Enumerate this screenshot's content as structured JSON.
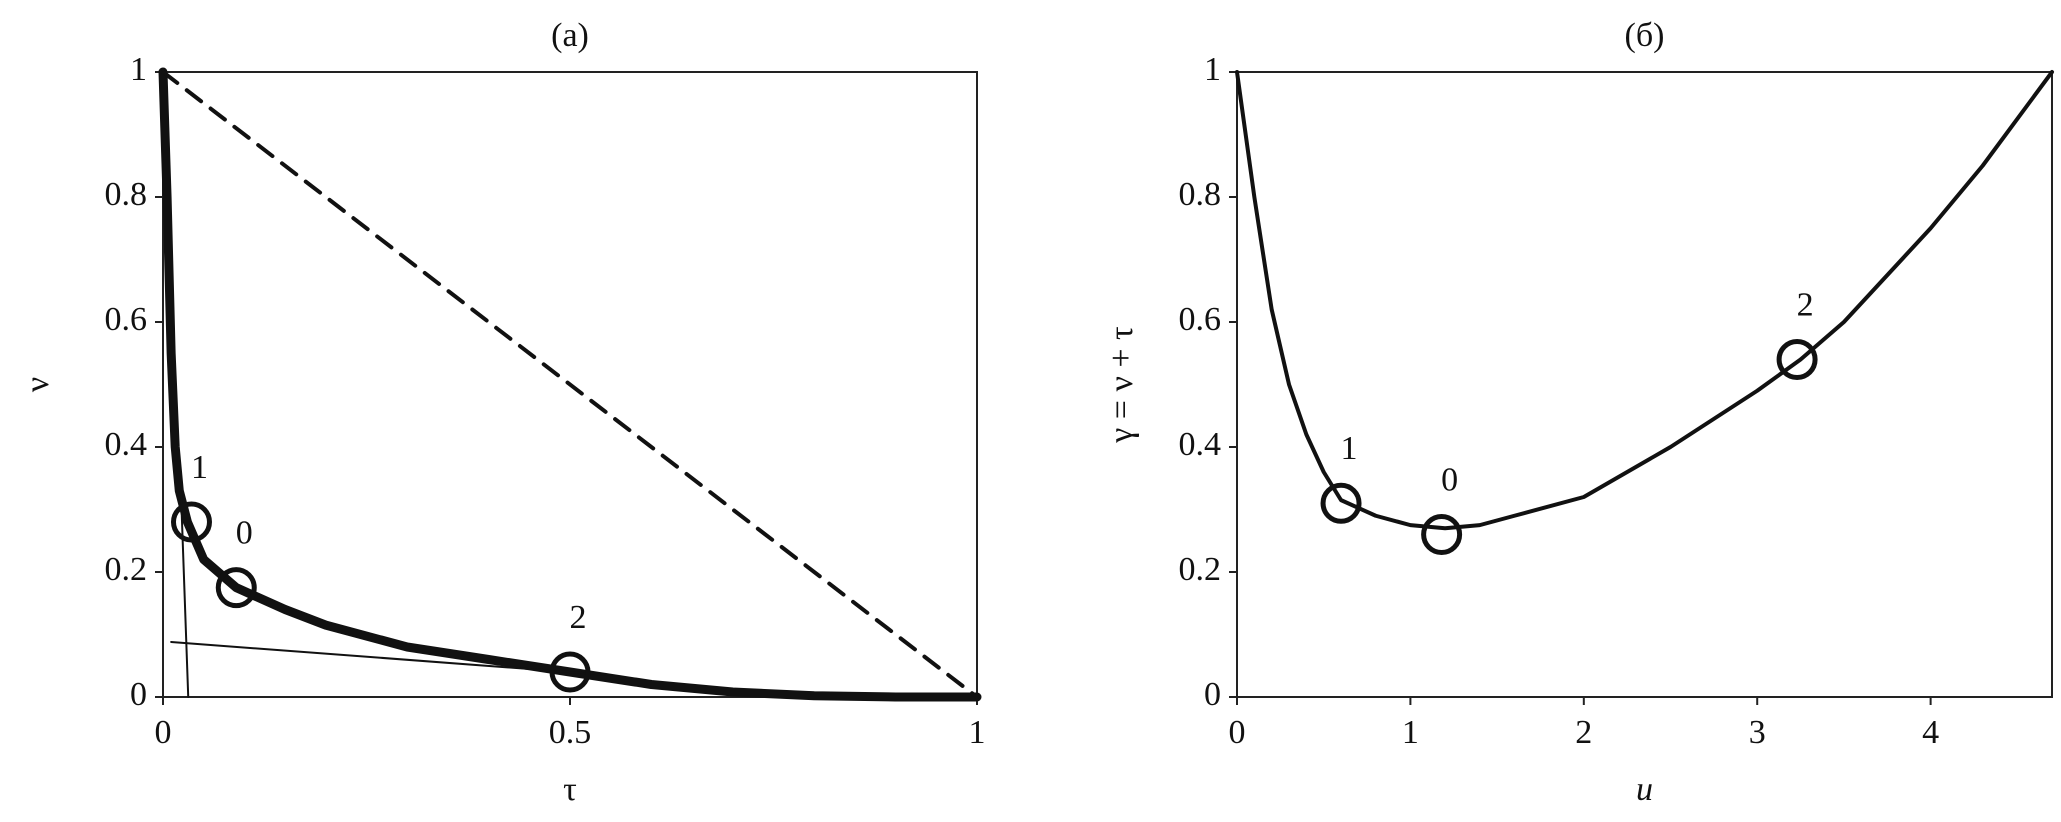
{
  "chart_data": [
    {
      "type": "line",
      "title": "(a)",
      "x_label": "τ",
      "y_label": "ν",
      "xlim": [
        0,
        1
      ],
      "ylim": [
        0,
        1
      ],
      "xticks": [
        0,
        0.5,
        1
      ],
      "yticks": [
        0,
        0.2,
        0.4,
        0.6,
        0.8,
        1
      ],
      "series": [
        {
          "style": "thick",
          "color": "#111",
          "x": [
            0,
            0.005,
            0.01,
            0.015,
            0.02,
            0.03,
            0.05,
            0.09,
            0.15,
            0.2,
            0.3,
            0.4,
            0.5,
            0.6,
            0.7,
            0.8,
            0.9,
            1
          ],
          "values": [
            1,
            0.8,
            0.55,
            0.4,
            0.33,
            0.28,
            0.22,
            0.175,
            0.14,
            0.115,
            0.08,
            0.06,
            0.04,
            0.02,
            0.008,
            0.002,
            0,
            0
          ]
        },
        {
          "style": "dashed",
          "color": "#111",
          "x": [
            0,
            1
          ],
          "values": [
            1,
            0
          ]
        },
        {
          "style": "thin",
          "color": "#111",
          "x": [
            0.022,
            0.031
          ],
          "values": [
            0.33,
            0
          ]
        },
        {
          "style": "thin",
          "color": "#111",
          "x": [
            0.01,
            0.55
          ],
          "values": [
            0.088,
            0.035
          ]
        }
      ],
      "markers": {
        "x": [
          0.035,
          0.09,
          0.5
        ],
        "values": [
          0.28,
          0.175,
          0.04
        ],
        "labels": [
          "1",
          "0",
          "2"
        ]
      }
    },
    {
      "type": "line",
      "title": "(б)",
      "x_label": "u",
      "y_label": "γ = ν + τ",
      "xlim": [
        0,
        4.7
      ],
      "ylim": [
        0,
        1
      ],
      "xticks": [
        0,
        1,
        2,
        3,
        4
      ],
      "yticks": [
        0,
        0.2,
        0.4,
        0.6,
        0.8,
        1
      ],
      "series": [
        {
          "style": "medium",
          "color": "#111",
          "x": [
            0,
            0.1,
            0.2,
            0.3,
            0.4,
            0.5,
            0.6,
            0.8,
            1.0,
            1.2,
            1.4,
            1.6,
            2,
            2.5,
            3,
            3.25,
            3.5,
            4,
            4.3,
            4.7
          ],
          "values": [
            1,
            0.8,
            0.62,
            0.5,
            0.42,
            0.36,
            0.315,
            0.29,
            0.275,
            0.27,
            0.275,
            0.29,
            0.32,
            0.4,
            0.49,
            0.54,
            0.6,
            0.75,
            0.85,
            1
          ]
        }
      ],
      "markers": {
        "x": [
          0.6,
          1.18,
          3.23
        ],
        "values": [
          0.31,
          0.26,
          0.54
        ],
        "labels": [
          "1",
          "0",
          "2"
        ]
      }
    }
  ]
}
